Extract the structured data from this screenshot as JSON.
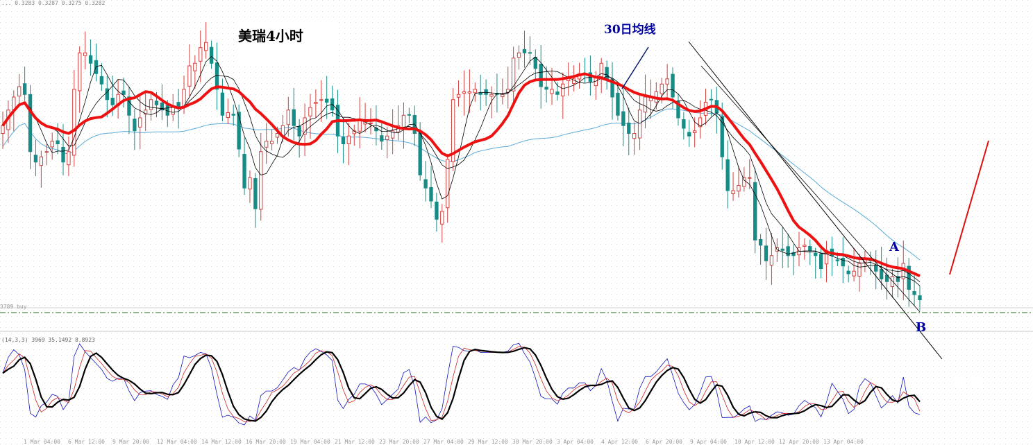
{
  "chart_data": {
    "type": "candlestick",
    "title": "美瑞4小时",
    "annotations": {
      "ma_label": "30日均线",
      "point_a": "A",
      "point_b": "B"
    },
    "header_text": "... 0.3283 0.3287 0.3275 0.3282",
    "current_price_tag": "3789 buy",
    "oscillator_header": "(14,3,3) 3969 35.1492 8.8923",
    "x_tick_labels": [
      "1 Mar 04:00",
      "6 Mar 12:00",
      "9 Mar 20:00",
      "12 Mar 04:00",
      "14 Mar 12:00",
      "16 Mar 20:00",
      "19 Mar 04:00",
      "21 Mar 12:00",
      "23 Mar 20:00",
      "27 Mar 04:00",
      "29 Mar 12:00",
      "30 Mar 20:00",
      "3 Apr 04:00",
      "4 Apr 12:00",
      "6 Apr 20:00",
      "9 Apr 04:00",
      "10 Apr 12:00",
      "12 Apr 20:00",
      "13 Apr 04:00"
    ],
    "colors": {
      "bull": "#d33f3f",
      "bear": "#178c87",
      "ma30": "#ee1111",
      "ma_slow": "#5aaad8",
      "ma_fast": "#000000",
      "osc_fast": "#1111bb",
      "osc_mid": "#cc2222",
      "osc_slow": "#000000",
      "trendline": "#000000",
      "projection": "#dd1111",
      "label_text": "#0000a0"
    },
    "series_close": [
      0.3272,
      0.3278,
      0.3283,
      0.3287,
      0.3284,
      0.3262,
      0.3258,
      0.326,
      0.3262,
      0.3266,
      0.3265,
      0.3258,
      0.3262,
      0.3286,
      0.33,
      0.33,
      0.3296,
      0.3292,
      0.3288,
      0.3282,
      0.328,
      0.3284,
      0.3284,
      0.3276,
      0.327,
      0.3275,
      0.3278,
      0.3282,
      0.328,
      0.3278,
      0.3276,
      0.3279,
      0.3279,
      0.3286,
      0.3295,
      0.3296,
      0.3302,
      0.3304,
      0.3296,
      0.3286,
      0.3276,
      0.3277,
      0.3276,
      0.3263,
      0.3248,
      0.3252,
      0.324,
      0.3262,
      0.3266,
      0.3266,
      0.3269,
      0.3272,
      0.3278,
      0.3272,
      0.3268,
      0.3275,
      0.3279,
      0.3281,
      0.3282,
      0.3281,
      0.3278,
      0.3268,
      0.3265,
      0.3268,
      0.327,
      0.3274,
      0.3274,
      0.3273,
      0.327,
      0.3266,
      0.3268,
      0.327,
      0.3272,
      0.3276,
      0.3276,
      0.3269,
      0.3253,
      0.3248,
      0.3243,
      0.3236,
      0.3239,
      0.3259,
      0.3282,
      0.3284,
      0.3285,
      0.3285,
      0.3286,
      0.3284,
      0.3284,
      0.3284,
      0.3284,
      0.3284,
      0.3286,
      0.3298,
      0.33,
      0.33,
      0.33,
      0.3294,
      0.3287,
      0.3286,
      0.3286,
      0.3284,
      0.3288,
      0.329,
      0.329,
      0.3292,
      0.3292,
      0.3289,
      0.3291,
      0.3296,
      0.329,
      0.3283,
      0.3276,
      0.3272,
      0.3269,
      0.3269,
      0.3278,
      0.3283,
      0.3283,
      0.3285,
      0.3288,
      0.329,
      0.3283,
      0.3275,
      0.3271,
      0.3268,
      0.327,
      0.3275,
      0.3281,
      0.3282,
      0.3277,
      0.326,
      0.3247,
      0.3247,
      0.3249,
      0.3252,
      0.3252,
      0.3228,
      0.3226,
      0.322,
      0.3222,
      0.3225,
      0.3224,
      0.3222,
      0.3222,
      0.3225,
      0.3226,
      0.3224,
      0.3222,
      0.3217,
      0.3224,
      0.3222,
      0.322,
      0.3218,
      0.3215,
      0.3216,
      0.3219,
      0.3221,
      0.322,
      0.3216,
      0.3213,
      0.3212,
      0.3214,
      0.3212,
      0.3219,
      0.3209,
      0.3207,
      0.3205
    ],
    "projection": {
      "from_close": 0.3218,
      "to_close": 0.3262,
      "description_none": ""
    },
    "oscillator": {
      "type": "stochastic",
      "range": [
        0,
        100
      ]
    }
  }
}
